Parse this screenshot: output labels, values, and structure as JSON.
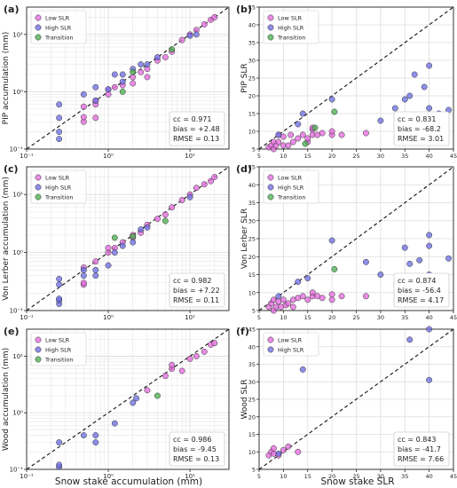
{
  "figure": {
    "xlabel_left": "Snow stake accumulation (mm)",
    "xlabel_right": "Snow stake SLR"
  },
  "colors": {
    "low": "#e36bde",
    "high": "#6e6ee3",
    "transition": "#4caf50"
  },
  "chart_data": [
    {
      "type": "scatter",
      "panel_label": "(a)",
      "xscale": "log",
      "yscale": "log",
      "xlim": [
        0.1,
        30
      ],
      "ylim": [
        0.1,
        30
      ],
      "ylabel": "PIP accumulation (mm)",
      "xticks": [
        0.1,
        1,
        10
      ],
      "xtick_labels": [
        "10⁻¹",
        "10⁰",
        "10¹"
      ],
      "yticks": [
        0.1,
        1,
        10
      ],
      "ytick_labels": [
        "10⁻¹",
        "10⁰",
        "10¹"
      ],
      "legend": [
        "Low SLR",
        "High SLR",
        "Transition"
      ],
      "legend_position": "top-left",
      "stats": [
        "cc = 0.971",
        "bias = +2.48",
        "RMSE = 0.13"
      ],
      "stats_position": "bottom-right",
      "series": [
        {
          "name": "Low SLR",
          "points": [
            [
              0.5,
              0.3
            ],
            [
              0.5,
              0.36
            ],
            [
              0.5,
              0.55
            ],
            [
              0.7,
              0.35
            ],
            [
              0.7,
              0.6
            ],
            [
              0.7,
              0.7
            ],
            [
              1.0,
              0.9
            ],
            [
              1.0,
              1.1
            ],
            [
              1.2,
              1.2
            ],
            [
              1.5,
              1.3
            ],
            [
              2.0,
              1.4
            ],
            [
              2.0,
              1.8
            ],
            [
              2.5,
              2.2
            ],
            [
              3.0,
              1.8
            ],
            [
              3.0,
              2.5
            ],
            [
              4.0,
              3.5
            ],
            [
              5.0,
              4.0
            ],
            [
              6.0,
              5.0
            ],
            [
              8.0,
              8.0
            ],
            [
              10.0,
              10.0
            ],
            [
              12.0,
              12.0
            ],
            [
              15.0,
              15.0
            ],
            [
              18.0,
              18.0
            ],
            [
              20.0,
              20.0
            ]
          ]
        },
        {
          "name": "High SLR",
          "points": [
            [
              0.25,
              0.15
            ],
            [
              0.25,
              0.2
            ],
            [
              0.25,
              0.35
            ],
            [
              0.25,
              0.6
            ],
            [
              0.5,
              0.9
            ],
            [
              0.7,
              0.7
            ],
            [
              0.7,
              1.2
            ],
            [
              1.0,
              1.1
            ],
            [
              1.2,
              2.0
            ],
            [
              1.5,
              1.5
            ],
            [
              1.5,
              2.0
            ],
            [
              2.0,
              2.5
            ],
            [
              2.5,
              3.0
            ],
            [
              3.0,
              3.0
            ],
            [
              4.0,
              4.0
            ],
            [
              10.0,
              9.5
            ],
            [
              12.0,
              10.0
            ]
          ]
        },
        {
          "name": "Transition",
          "points": [
            [
              1.5,
              1.0
            ],
            [
              2.0,
              2.2
            ],
            [
              6.0,
              5.5
            ]
          ]
        }
      ]
    },
    {
      "type": "scatter",
      "panel_label": "(b)",
      "xlim": [
        5,
        45
      ],
      "ylim": [
        5,
        45
      ],
      "xticks": [
        5,
        10,
        15,
        20,
        25,
        30,
        35,
        40,
        45
      ],
      "yticks": [
        5,
        10,
        15,
        20,
        25,
        30,
        35,
        40,
        45
      ],
      "ylabel": "PIP SLR",
      "legend": [
        "Low SLR",
        "High SLR",
        "Transition"
      ],
      "legend_position": "top-left",
      "stats": [
        "cc = 0.831",
        "bias = -68.2",
        "RMSE = 3.01"
      ],
      "stats_position": "bottom-right",
      "series": [
        {
          "name": "Low SLR",
          "points": [
            [
              7,
              5.5
            ],
            [
              7.5,
              6
            ],
            [
              8,
              5
            ],
            [
              8,
              7
            ],
            [
              8.5,
              6
            ],
            [
              9,
              7
            ],
            [
              9,
              9
            ],
            [
              10,
              6
            ],
            [
              10,
              8.5
            ],
            [
              11,
              6
            ],
            [
              11.5,
              9
            ],
            [
              12,
              7
            ],
            [
              13,
              8
            ],
            [
              14,
              9
            ],
            [
              15,
              7
            ],
            [
              15,
              8
            ],
            [
              16,
              9
            ],
            [
              16,
              10.5
            ],
            [
              17,
              9
            ],
            [
              18,
              9.5
            ],
            [
              20,
              9
            ],
            [
              20,
              10
            ],
            [
              22,
              9
            ],
            [
              27,
              9.5
            ],
            [
              16,
              11
            ]
          ]
        },
        {
          "name": "High SLR",
          "points": [
            [
              9,
              9
            ],
            [
              13,
              12
            ],
            [
              14,
              15
            ],
            [
              20,
              19
            ],
            [
              30,
              13
            ],
            [
              33,
              16.5
            ],
            [
              35,
              19
            ],
            [
              36,
              20
            ],
            [
              37,
              26
            ],
            [
              39,
              22.5
            ],
            [
              40,
              28.5
            ],
            [
              40,
              16.5
            ],
            [
              40,
              14.5
            ],
            [
              42,
              15
            ],
            [
              44,
              16
            ]
          ]
        },
        {
          "name": "Transition",
          "points": [
            [
              14.5,
              6.5
            ],
            [
              16.5,
              11
            ],
            [
              20.5,
              15.5
            ]
          ]
        }
      ]
    },
    {
      "type": "scatter",
      "panel_label": "(c)",
      "xscale": "log",
      "yscale": "log",
      "xlim": [
        0.1,
        30
      ],
      "ylim": [
        0.1,
        30
      ],
      "ylabel": "Von Lerber accumulation (mm)",
      "xticks": [
        0.1,
        1,
        10
      ],
      "xtick_labels": [
        "10⁻¹",
        "10⁰",
        "10¹"
      ],
      "yticks": [
        0.1,
        1,
        10
      ],
      "ytick_labels": [
        "10⁻¹",
        "10⁰",
        "10¹"
      ],
      "legend": [
        "Low SLR",
        "High SLR",
        "Transition"
      ],
      "legend_position": "top-left",
      "stats": [
        "cc = 0.982",
        "bias = +7.22",
        "RMSE = 0.11"
      ],
      "stats_position": "bottom-right",
      "series": [
        {
          "name": "Low SLR",
          "points": [
            [
              0.5,
              0.28
            ],
            [
              0.5,
              0.3
            ],
            [
              0.5,
              0.55
            ],
            [
              0.7,
              0.7
            ],
            [
              1.0,
              1.0
            ],
            [
              1.0,
              1.2
            ],
            [
              1.2,
              1.2
            ],
            [
              1.5,
              1.5
            ],
            [
              2.0,
              1.8
            ],
            [
              2.0,
              2.0
            ],
            [
              2.5,
              2.2
            ],
            [
              3.0,
              3.0
            ],
            [
              4.0,
              3.8
            ],
            [
              5.0,
              4.5
            ],
            [
              6.0,
              6.0
            ],
            [
              8.0,
              8.0
            ],
            [
              10.0,
              10.0
            ],
            [
              12.0,
              13.0
            ],
            [
              15.0,
              15.0
            ],
            [
              18.0,
              17.0
            ],
            [
              20.0,
              20.0
            ]
          ]
        },
        {
          "name": "High SLR",
          "points": [
            [
              0.25,
              0.13
            ],
            [
              0.25,
              0.15
            ],
            [
              0.25,
              0.16
            ],
            [
              0.25,
              0.28
            ],
            [
              0.25,
              0.35
            ],
            [
              0.5,
              0.4
            ],
            [
              0.5,
              0.5
            ],
            [
              0.7,
              0.4
            ],
            [
              0.7,
              0.5
            ],
            [
              1.0,
              0.6
            ],
            [
              1.2,
              1.0
            ],
            [
              1.5,
              1.3
            ],
            [
              2.0,
              1.5
            ],
            [
              2.5,
              2.5
            ],
            [
              3.0,
              2.7
            ],
            [
              10.0,
              9.0
            ]
          ]
        },
        {
          "name": "Transition",
          "points": [
            [
              1.2,
              1.8
            ],
            [
              2.0,
              1.9
            ],
            [
              5.0,
              3.5
            ]
          ]
        }
      ]
    },
    {
      "type": "scatter",
      "panel_label": "(d)",
      "xlim": [
        5,
        45
      ],
      "ylim": [
        5,
        45
      ],
      "xticks": [
        5,
        10,
        15,
        20,
        25,
        30,
        35,
        40,
        45
      ],
      "yticks": [
        5,
        10,
        15,
        20,
        25,
        30,
        35,
        40,
        45
      ],
      "ylabel": "Von Lerber SLR",
      "legend": [
        "Low SLR",
        "High SLR",
        "Transition"
      ],
      "legend_position": "top-left",
      "stats": [
        "cc = 0.874",
        "bias = -56.4",
        "RMSE = 4.17"
      ],
      "stats_position": "bottom-right",
      "series": [
        {
          "name": "Low SLR",
          "points": [
            [
              7,
              6
            ],
            [
              7.5,
              7
            ],
            [
              8,
              5
            ],
            [
              8,
              8
            ],
            [
              8.5,
              6
            ],
            [
              9,
              7.5
            ],
            [
              9.5,
              6
            ],
            [
              10,
              8
            ],
            [
              10.5,
              6.5
            ],
            [
              11,
              7
            ],
            [
              12,
              6
            ],
            [
              12,
              8
            ],
            [
              13,
              8.5
            ],
            [
              14,
              9
            ],
            [
              15,
              8
            ],
            [
              16,
              9
            ],
            [
              16,
              10
            ],
            [
              17,
              9
            ],
            [
              18,
              8.5
            ],
            [
              20,
              8
            ],
            [
              20,
              9.5
            ],
            [
              22,
              9
            ],
            [
              27,
              9
            ],
            [
              40,
              9.5
            ]
          ]
        },
        {
          "name": "High SLR",
          "points": [
            [
              9,
              9
            ],
            [
              13,
              13
            ],
            [
              15,
              14
            ],
            [
              20,
              24.5
            ],
            [
              27,
              18.5
            ],
            [
              30,
              15
            ],
            [
              35,
              22.5
            ],
            [
              36,
              18
            ],
            [
              38,
              19
            ],
            [
              40,
              26
            ],
            [
              40,
              23
            ],
            [
              40,
              15
            ],
            [
              40,
              11
            ],
            [
              44,
              19.5
            ]
          ]
        },
        {
          "name": "Transition",
          "points": [
            [
              20.5,
              16.5
            ]
          ]
        }
      ]
    },
    {
      "type": "scatter",
      "panel_label": "(e)",
      "xscale": "log",
      "yscale": "log",
      "xlim": [
        0.1,
        30
      ],
      "ylim": [
        0.1,
        30
      ],
      "ylabel": "Wood accumulation (mm)",
      "xticks": [
        0.1,
        1,
        10
      ],
      "xtick_labels": [
        "10⁻¹",
        "10⁰",
        "10¹"
      ],
      "yticks": [
        0.1,
        1,
        10
      ],
      "ytick_labels": [
        "10⁻¹",
        "10⁰",
        "10¹"
      ],
      "legend": [
        "Low SLR",
        "High SLR",
        "Transition"
      ],
      "legend_position": "top-left",
      "stats": [
        "cc = 0.986",
        "bias = -9.45",
        "RMSE = 0.13"
      ],
      "stats_position": "bottom-right",
      "series": [
        {
          "name": "Low SLR",
          "points": [
            [
              3.0,
              2.5
            ],
            [
              5.0,
              4.5
            ],
            [
              6.0,
              6.0
            ],
            [
              6.0,
              7.0
            ],
            [
              8.0,
              5.5
            ],
            [
              10.0,
              9.0
            ],
            [
              12.0,
              10.0
            ],
            [
              15.0,
              12.0
            ],
            [
              18.0,
              16.0
            ],
            [
              20.0,
              17.0
            ]
          ]
        },
        {
          "name": "High SLR",
          "points": [
            [
              0.25,
              0.11
            ],
            [
              0.25,
              0.12
            ],
            [
              0.25,
              0.3
            ],
            [
              0.5,
              0.4
            ],
            [
              0.7,
              0.3
            ],
            [
              0.7,
              0.4
            ],
            [
              1.2,
              0.65
            ],
            [
              2.0,
              1.5
            ],
            [
              2.2,
              1.8
            ]
          ]
        },
        {
          "name": "Transition",
          "points": [
            [
              4.0,
              2.0
            ]
          ]
        }
      ]
    },
    {
      "type": "scatter",
      "panel_label": "(f)",
      "xlim": [
        5,
        45
      ],
      "ylim": [
        5,
        45
      ],
      "xticks": [
        5,
        10,
        15,
        20,
        25,
        30,
        35,
        40,
        45
      ],
      "yticks": [
        5,
        10,
        15,
        20,
        25,
        30,
        35,
        40,
        45
      ],
      "ylabel": "Wood SLR",
      "legend": [
        "Low SLR",
        "High SLR"
      ],
      "legend_position": "top-left",
      "stats": [
        "cc = 0.843",
        "bias = -41.7",
        "RMSE = 7.66"
      ],
      "stats_position": "bottom-right",
      "series": [
        {
          "name": "Low SLR",
          "points": [
            [
              7,
              9
            ],
            [
              7.5,
              10
            ],
            [
              8,
              9.5
            ],
            [
              8,
              11
            ],
            [
              9,
              9
            ],
            [
              10,
              10.5
            ],
            [
              11,
              11.5
            ],
            [
              13,
              10
            ]
          ]
        },
        {
          "name": "High SLR",
          "points": [
            [
              9,
              9.5
            ],
            [
              14,
              33.5
            ],
            [
              36,
              42
            ],
            [
              40,
              30.5
            ],
            [
              40,
              45
            ]
          ]
        }
      ]
    }
  ]
}
